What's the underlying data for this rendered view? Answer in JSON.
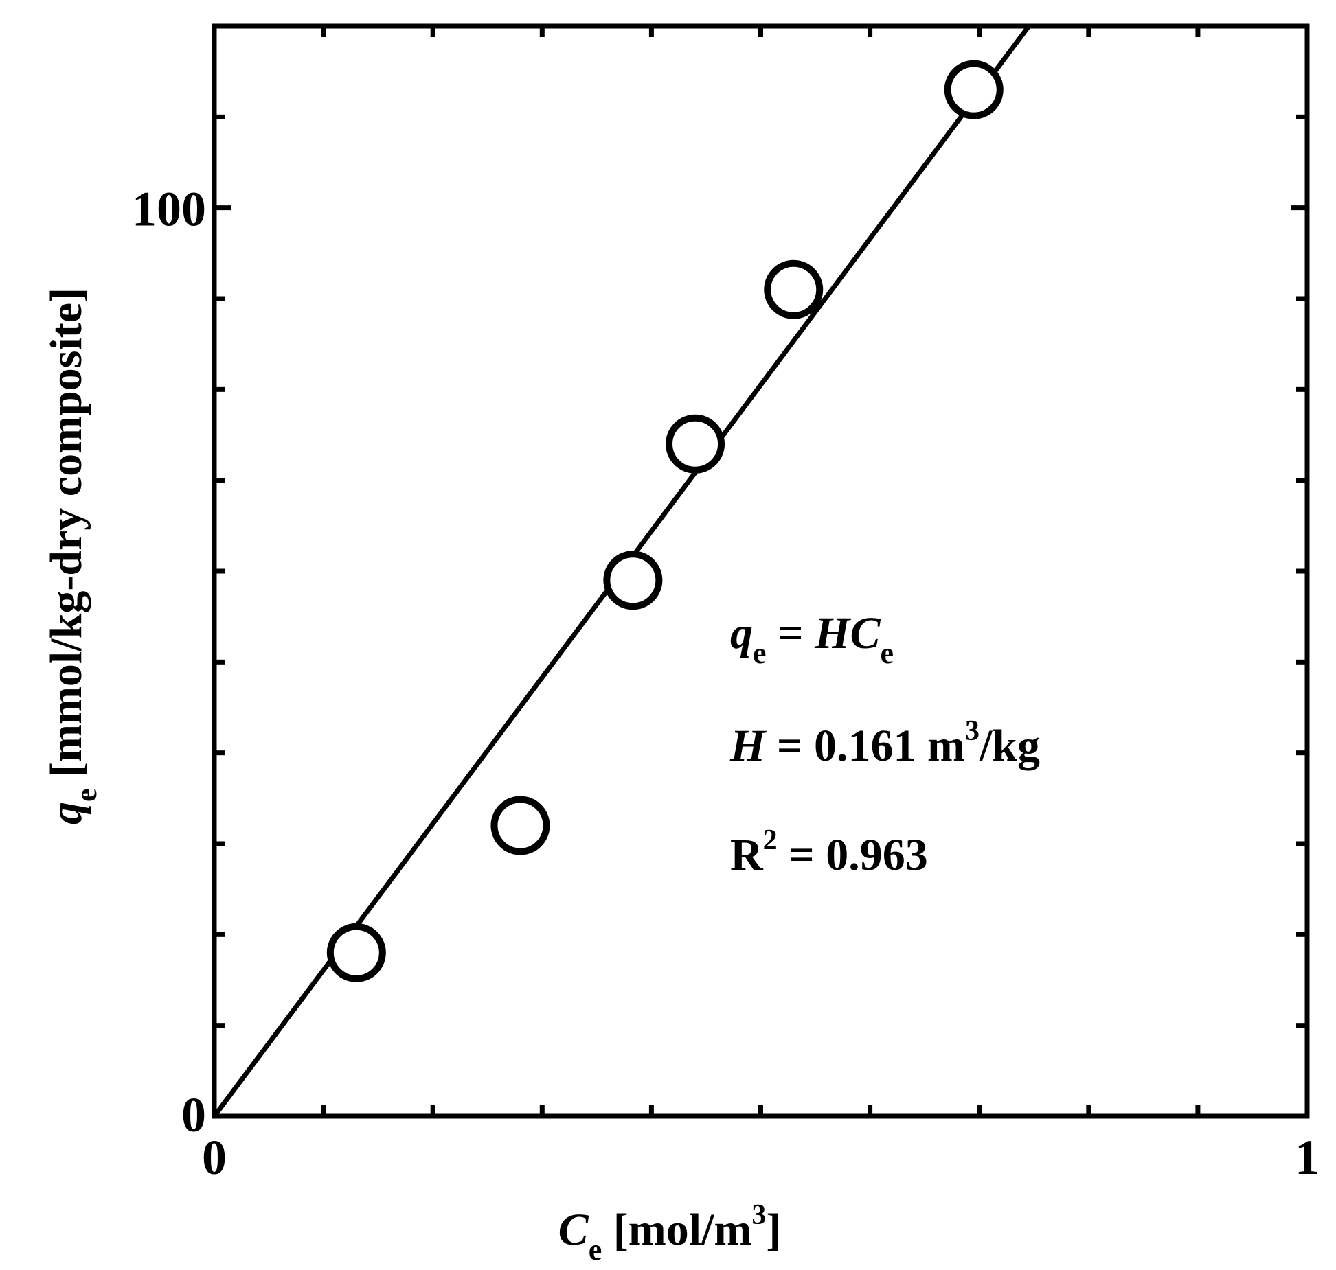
{
  "chart_data": {
    "type": "scatter",
    "x_axis": {
      "label_var": "C",
      "label_sub": "e",
      "label_unit_prefix": " [mol/m",
      "label_unit_sup": "3",
      "label_unit_suffix": "]",
      "range": [
        0,
        1
      ],
      "major_ticks": [
        0,
        1
      ],
      "tick_labels": [
        "0",
        "1"
      ],
      "minor_step": 0.1
    },
    "y_axis": {
      "label_var": "q",
      "label_sub": "e",
      "label_unit": " [mmol/kg-dry composite]",
      "range": [
        0,
        120
      ],
      "major_ticks": [
        0,
        100
      ],
      "tick_labels": [
        "0",
        "100"
      ],
      "minor_step": 10
    },
    "points": [
      {
        "x": 0.13,
        "y": 18
      },
      {
        "x": 0.28,
        "y": 32
      },
      {
        "x": 0.383,
        "y": 59
      },
      {
        "x": 0.44,
        "y": 74
      },
      {
        "x": 0.53,
        "y": 91
      },
      {
        "x": 0.695,
        "y": 113
      }
    ],
    "fit_line": {
      "slope": 161,
      "intercept": 0
    },
    "annotation": {
      "eq_var1": "q",
      "eq_sub1": "e",
      "eq_mid": " = ",
      "eq_var2": "HC",
      "eq_sub2": "e",
      "h_var": "H",
      "h_text": " = 0.161 m",
      "h_sup": "3",
      "h_unit": "/kg",
      "r_text": "R",
      "r_sup": "2",
      "r_value": " = 0.963"
    },
    "grid": false,
    "marker": "open-circle",
    "colors": {
      "line": "#000000",
      "marker_fill": "#ffffff",
      "marker_stroke": "#000000"
    }
  }
}
